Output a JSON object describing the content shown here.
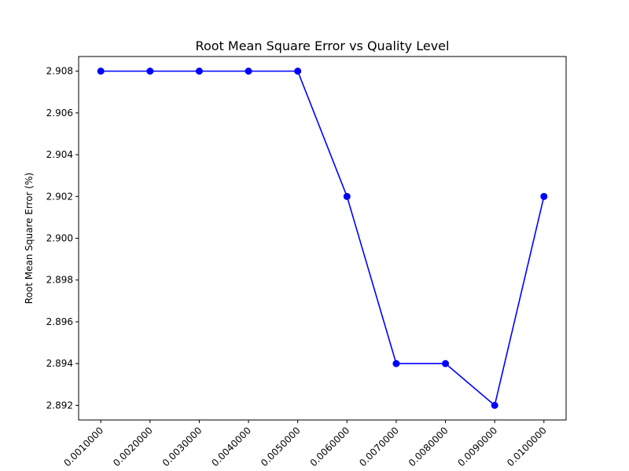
{
  "chart_data": {
    "type": "line",
    "title": "Root Mean Square Error vs Quality Level",
    "xlabel": "",
    "ylabel": "Root Mean Square Error (%)",
    "categories": [
      "0.0010000",
      "0.0020000",
      "0.0030000",
      "0.0040000",
      "0.0050000",
      "0.0060000",
      "0.0070000",
      "0.0080000",
      "0.0090000",
      "0.0100000"
    ],
    "series": [
      {
        "values": [
          2.908,
          2.908,
          2.908,
          2.908,
          2.908,
          2.902,
          2.894,
          2.894,
          2.892,
          2.902
        ],
        "color": "#0000ff",
        "marker": "circle"
      }
    ],
    "ylim": [
      2.8913,
      2.9087
    ],
    "yticks": [
      "2.892",
      "2.894",
      "2.896",
      "2.898",
      "2.900",
      "2.902",
      "2.904",
      "2.906",
      "2.908"
    ],
    "grid": false,
    "legend": "none"
  }
}
